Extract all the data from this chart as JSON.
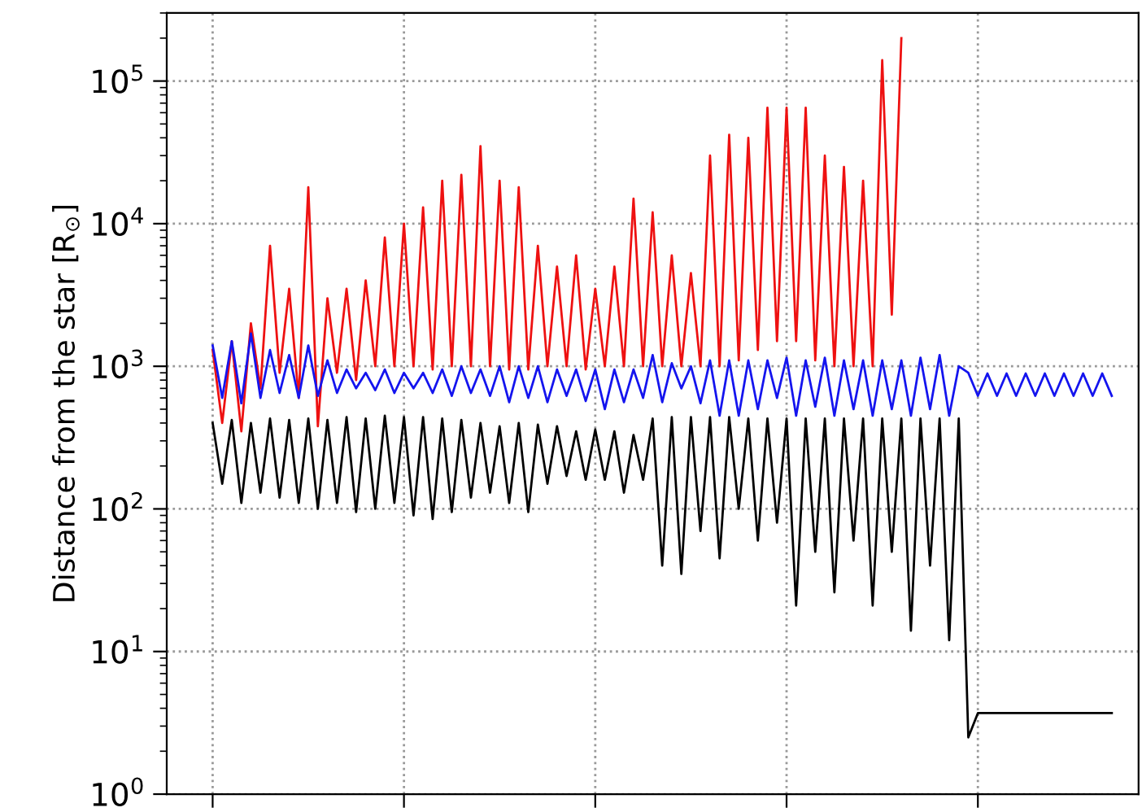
{
  "chart_data": {
    "type": "line",
    "ylabel": "Distance from the star [R$_{⊙}$]",
    "log": "y",
    "grid": true,
    "tick_labels": "y",
    "line_style": "solid",
    "marker": "none",
    "categories": [
      null,
      null,
      null,
      null,
      null,
      null,
      null,
      null,
      null,
      null,
      null,
      null,
      null,
      null,
      null,
      null,
      null,
      null,
      null,
      null,
      null,
      null,
      null,
      null,
      null,
      null,
      null,
      null,
      null,
      null,
      null,
      null,
      null,
      null,
      null,
      null,
      null,
      null,
      null,
      null,
      null,
      null,
      null,
      null,
      null,
      null,
      null,
      null,
      null,
      null,
      null,
      null,
      null,
      null,
      null,
      null,
      null,
      null,
      null,
      null,
      null,
      null,
      null,
      null,
      null,
      null,
      null,
      null,
      null,
      null,
      null,
      null,
      null,
      null,
      null,
      null,
      null,
      null,
      null,
      null,
      null,
      null,
      null,
      null,
      null,
      null,
      null,
      null,
      null,
      null,
      null,
      null,
      null,
      null,
      null
    ],
    "ylim": [
      1,
      300000
    ],
    "yticks": [
      {
        "value": 1,
        "label": "10$^{0}$"
      },
      {
        "value": 10,
        "label": "10$^{1}$"
      },
      {
        "value": 100,
        "label": "10$^{2}$"
      },
      {
        "value": 1000,
        "label": "10$^{3}$"
      },
      {
        "value": 10000,
        "label": "10$^{4}$"
      },
      {
        "value": 100000,
        "label": "10$^{5}$"
      }
    ],
    "series": [
      {
        "color": "#ee1111",
        "values": [
          1300,
          400,
          1500,
          350,
          2000,
          700,
          7000,
          900,
          3500,
          600,
          18000,
          380,
          3000,
          900,
          3500,
          800,
          4000,
          1000,
          8000,
          1000,
          10000,
          1000,
          13000,
          950,
          20000,
          1000,
          22000,
          1000,
          35000,
          1000,
          20000,
          950,
          18000,
          950,
          7000,
          1000,
          5000,
          1000,
          6000,
          950,
          3500,
          1000,
          5000,
          1000,
          15000,
          1000,
          12000,
          1000,
          6000,
          1000,
          4500,
          1000,
          30000,
          1000,
          42000,
          1100,
          40000,
          1300,
          65000,
          1500,
          65000,
          1500,
          65000,
          1100,
          30000,
          1000,
          25000,
          1000,
          20000,
          1000,
          140000,
          2300,
          200000,
          null,
          null,
          null,
          null,
          null,
          null,
          null,
          null,
          null,
          null,
          null,
          null,
          null,
          null,
          null,
          null,
          null,
          null,
          null,
          null,
          null,
          null
        ]
      },
      {
        "color": "#1414ee",
        "values": [
          1400,
          600,
          1500,
          550,
          1700,
          600,
          1300,
          650,
          1200,
          600,
          1400,
          620,
          1100,
          650,
          950,
          700,
          900,
          680,
          950,
          650,
          900,
          700,
          900,
          650,
          950,
          620,
          1000,
          650,
          950,
          620,
          1000,
          560,
          1000,
          600,
          1000,
          560,
          950,
          620,
          950,
          570,
          950,
          500,
          950,
          560,
          950,
          600,
          1200,
          560,
          1050,
          700,
          1000,
          550,
          1100,
          450,
          1100,
          450,
          1100,
          500,
          1100,
          600,
          1150,
          450,
          1100,
          520,
          1150,
          450,
          1100,
          500,
          1100,
          450,
          1100,
          500,
          1100,
          450,
          1150,
          500,
          1200,
          450,
          1000,
          900,
          620,
          890,
          620,
          890,
          620,
          890,
          620,
          890,
          620,
          890,
          620,
          890,
          620,
          890,
          620
        ]
      },
      {
        "color": "#000000",
        "values": [
          400,
          150,
          420,
          110,
          400,
          130,
          430,
          120,
          420,
          110,
          430,
          100,
          420,
          110,
          440,
          95,
          430,
          100,
          450,
          110,
          440,
          90,
          440,
          85,
          430,
          95,
          420,
          120,
          400,
          130,
          380,
          110,
          400,
          95,
          390,
          150,
          380,
          170,
          350,
          160,
          360,
          160,
          350,
          130,
          330,
          160,
          430,
          40,
          440,
          35,
          440,
          70,
          440,
          45,
          440,
          100,
          430,
          60,
          430,
          80,
          430,
          21,
          430,
          50,
          430,
          26,
          430,
          60,
          430,
          21,
          430,
          50,
          430,
          14,
          430,
          40,
          430,
          12,
          430,
          2.5,
          3.7,
          3.7,
          3.7,
          3.7,
          3.7,
          3.7,
          3.7,
          3.7,
          3.7,
          3.7,
          3.7,
          3.7,
          3.7,
          3.7,
          3.7
        ]
      }
    ]
  }
}
